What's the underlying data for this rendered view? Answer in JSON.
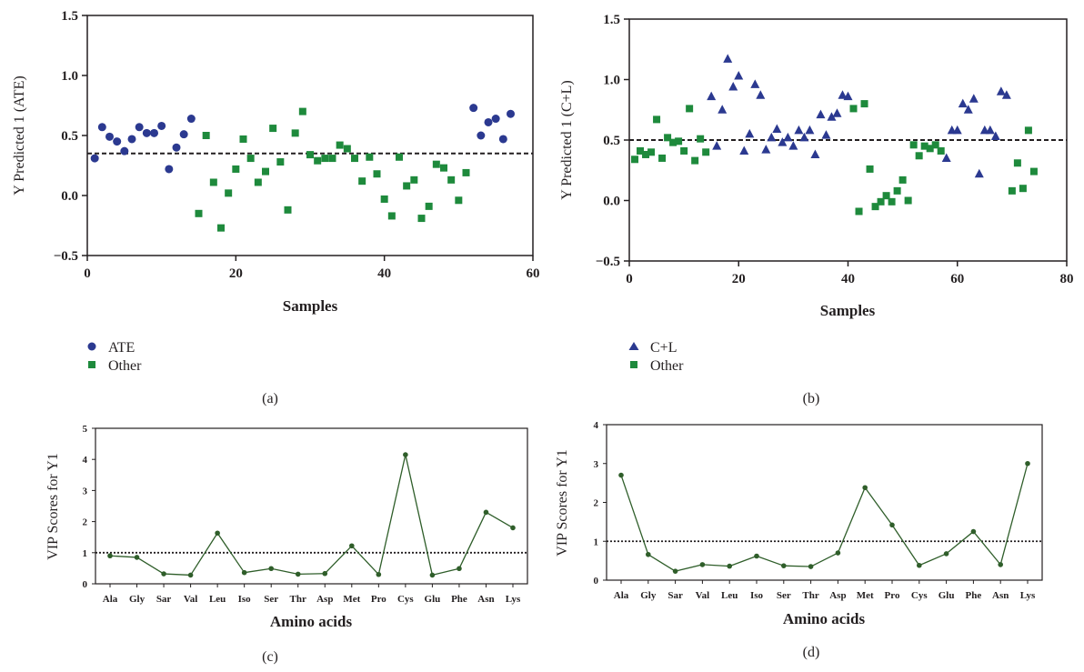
{
  "chart_data": [
    {
      "panel": "(a)",
      "type": "scatter",
      "ylabel": "Y Predicted 1 (ATE)",
      "xlabel": "Samples",
      "xlim": [
        0,
        60
      ],
      "ylim": [
        -0.5,
        1.5
      ],
      "xticks": [
        "0",
        "20",
        "40",
        "60"
      ],
      "yticks": [
        "−0.5",
        "0.0",
        "0.5",
        "1.0",
        "1.5"
      ],
      "threshold": 0.35,
      "colors": {
        "primary": "#2b3990",
        "other": "#1e8a3c"
      },
      "legend": [
        "ATE",
        "Other"
      ],
      "series": [
        {
          "name": "ATE",
          "marker": "circle",
          "points": [
            [
              1,
              0.31
            ],
            [
              2,
              0.57
            ],
            [
              3,
              0.49
            ],
            [
              4,
              0.45
            ],
            [
              5,
              0.37
            ],
            [
              6,
              0.47
            ],
            [
              7,
              0.57
            ],
            [
              8,
              0.52
            ],
            [
              9,
              0.52
            ],
            [
              10,
              0.58
            ],
            [
              11,
              0.22
            ],
            [
              12,
              0.4
            ],
            [
              13,
              0.51
            ],
            [
              14,
              0.64
            ],
            [
              52,
              0.73
            ],
            [
              53,
              0.5
            ],
            [
              54,
              0.61
            ],
            [
              55,
              0.64
            ],
            [
              56,
              0.47
            ],
            [
              57,
              0.68
            ]
          ]
        },
        {
          "name": "Other",
          "marker": "square",
          "points": [
            [
              15,
              -0.15
            ],
            [
              16,
              0.5
            ],
            [
              17,
              0.11
            ],
            [
              18,
              -0.27
            ],
            [
              19,
              0.02
            ],
            [
              20,
              0.22
            ],
            [
              21,
              0.47
            ],
            [
              22,
              0.31
            ],
            [
              23,
              0.11
            ],
            [
              24,
              0.2
            ],
            [
              25,
              0.56
            ],
            [
              26,
              0.28
            ],
            [
              27,
              -0.12
            ],
            [
              28,
              0.52
            ],
            [
              29,
              0.7
            ],
            [
              30,
              0.34
            ],
            [
              31,
              0.29
            ],
            [
              32,
              0.31
            ],
            [
              33,
              0.31
            ],
            [
              34,
              0.42
            ],
            [
              35,
              0.39
            ],
            [
              36,
              0.31
            ],
            [
              37,
              0.12
            ],
            [
              38,
              0.32
            ],
            [
              39,
              0.18
            ],
            [
              40,
              -0.03
            ],
            [
              41,
              -0.17
            ],
            [
              42,
              0.32
            ],
            [
              43,
              0.08
            ],
            [
              44,
              0.13
            ],
            [
              45,
              -0.19
            ],
            [
              46,
              -0.09
            ],
            [
              47,
              0.26
            ],
            [
              48,
              0.23
            ],
            [
              49,
              0.13
            ],
            [
              50,
              -0.04
            ],
            [
              51,
              0.19
            ]
          ]
        }
      ]
    },
    {
      "panel": "(b)",
      "type": "scatter",
      "ylabel": "Y Predicted 1 (C+L)",
      "xlabel": "Samples",
      "xlim": [
        0,
        80
      ],
      "ylim": [
        -0.5,
        1.5
      ],
      "xticks": [
        "0",
        "20",
        "40",
        "60",
        "80"
      ],
      "yticks": [
        "−0.5",
        "0.0",
        "0.5",
        "1.0",
        "1.5"
      ],
      "threshold": 0.5,
      "colors": {
        "primary": "#2b3990",
        "other": "#1e8a3c"
      },
      "legend": [
        "C+L",
        "Other"
      ],
      "series": [
        {
          "name": "C+L",
          "marker": "triangle",
          "points": [
            [
              15,
              0.86
            ],
            [
              16,
              0.45
            ],
            [
              17,
              0.75
            ],
            [
              18,
              1.17
            ],
            [
              19,
              0.94
            ],
            [
              20,
              1.03
            ],
            [
              21,
              0.41
            ],
            [
              22,
              0.55
            ],
            [
              23,
              0.96
            ],
            [
              24,
              0.87
            ],
            [
              25,
              0.42
            ],
            [
              26,
              0.52
            ],
            [
              27,
              0.59
            ],
            [
              28,
              0.48
            ],
            [
              29,
              0.52
            ],
            [
              30,
              0.45
            ],
            [
              31,
              0.58
            ],
            [
              32,
              0.52
            ],
            [
              33,
              0.58
            ],
            [
              34,
              0.38
            ],
            [
              35,
              0.71
            ],
            [
              36,
              0.54
            ],
            [
              37,
              0.69
            ],
            [
              38,
              0.72
            ],
            [
              39,
              0.87
            ],
            [
              40,
              0.86
            ],
            [
              58,
              0.35
            ],
            [
              59,
              0.58
            ],
            [
              60,
              0.58
            ],
            [
              61,
              0.8
            ],
            [
              62,
              0.75
            ],
            [
              63,
              0.84
            ],
            [
              64,
              0.22
            ],
            [
              65,
              0.58
            ],
            [
              66,
              0.58
            ],
            [
              67,
              0.53
            ],
            [
              68,
              0.9
            ],
            [
              69,
              0.87
            ]
          ]
        },
        {
          "name": "Other",
          "marker": "square",
          "points": [
            [
              1,
              0.34
            ],
            [
              2,
              0.41
            ],
            [
              3,
              0.38
            ],
            [
              4,
              0.4
            ],
            [
              5,
              0.67
            ],
            [
              6,
              0.35
            ],
            [
              7,
              0.52
            ],
            [
              8,
              0.48
            ],
            [
              9,
              0.49
            ],
            [
              10,
              0.41
            ],
            [
              11,
              0.76
            ],
            [
              12,
              0.33
            ],
            [
              13,
              0.51
            ],
            [
              14,
              0.4
            ],
            [
              41,
              0.76
            ],
            [
              42,
              -0.09
            ],
            [
              43,
              0.8
            ],
            [
              44,
              0.26
            ],
            [
              45,
              -0.05
            ],
            [
              46,
              -0.01
            ],
            [
              47,
              0.04
            ],
            [
              48,
              -0.01
            ],
            [
              49,
              0.08
            ],
            [
              50,
              0.17
            ],
            [
              51,
              0.0
            ],
            [
              52,
              0.46
            ],
            [
              53,
              0.37
            ],
            [
              54,
              0.45
            ],
            [
              55,
              0.43
            ],
            [
              56,
              0.46
            ],
            [
              57,
              0.41
            ],
            [
              70,
              0.08
            ],
            [
              71,
              0.31
            ],
            [
              72,
              0.1
            ],
            [
              73,
              0.58
            ],
            [
              74,
              0.24
            ]
          ]
        }
      ]
    },
    {
      "panel": "(c)",
      "type": "line",
      "ylabel": "VIP Scores for Y1",
      "xlabel": "Amino acids",
      "ylim": [
        0,
        5
      ],
      "yticks": [
        "0",
        "1",
        "2",
        "3",
        "4",
        "5"
      ],
      "threshold": 1,
      "color": "#2f5e2a",
      "categories": [
        "Ala",
        "Gly",
        "Sar",
        "Val",
        "Leu",
        "Iso",
        "Ser",
        "Thr",
        "Asp",
        "Met",
        "Pro",
        "Cys",
        "Glu",
        "Phe",
        "Asn",
        "Lys"
      ],
      "values": [
        0.9,
        0.85,
        0.32,
        0.28,
        1.63,
        0.36,
        0.49,
        0.31,
        0.33,
        1.22,
        0.3,
        4.15,
        0.28,
        0.49,
        2.3,
        1.8
      ]
    },
    {
      "panel": "(d)",
      "type": "line",
      "ylabel": "VIP Scores for Y1",
      "xlabel": "Amino acids",
      "ylim": [
        0,
        4
      ],
      "yticks": [
        "0",
        "1",
        "2",
        "3",
        "4"
      ],
      "threshold": 1,
      "color": "#2f5e2a",
      "categories": [
        "Ala",
        "Gly",
        "Sar",
        "Val",
        "Leu",
        "Iso",
        "Ser",
        "Thr",
        "Asp",
        "Met",
        "Pro",
        "Cys",
        "Glu",
        "Phe",
        "Asn",
        "Lys"
      ],
      "values": [
        2.7,
        0.66,
        0.23,
        0.4,
        0.36,
        0.62,
        0.37,
        0.35,
        0.7,
        2.38,
        1.42,
        0.38,
        0.68,
        1.25,
        0.4,
        3.0
      ]
    }
  ]
}
